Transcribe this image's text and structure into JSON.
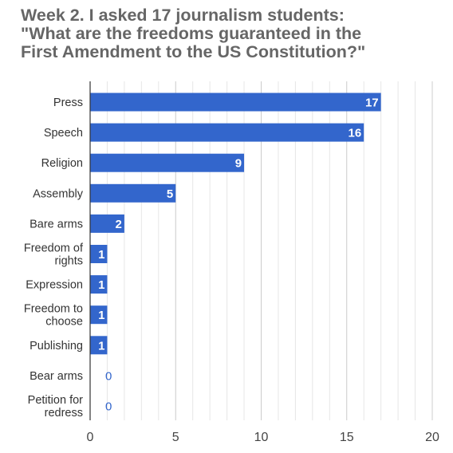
{
  "chart_data": {
    "type": "bar",
    "orientation": "horizontal",
    "title_lines": [
      "Week 2. I asked 17 journalism students:",
      "\"What are the freedoms guaranteed in the",
      "First Amendment to the US Constitution?\""
    ],
    "categories": [
      [
        "Press"
      ],
      [
        "Speech"
      ],
      [
        "Religion"
      ],
      [
        "Assembly"
      ],
      [
        "Bare arms"
      ],
      [
        "Freedom of",
        "rights"
      ],
      [
        "Expression"
      ],
      [
        "Freedom to",
        "choose"
      ],
      [
        "Publishing"
      ],
      [
        "Bear arms"
      ],
      [
        "Petition for",
        "redress"
      ]
    ],
    "values": [
      17,
      16,
      9,
      5,
      2,
      1,
      1,
      1,
      1,
      0,
      0
    ],
    "value_labels": [
      "17",
      "16",
      "9",
      "5",
      "2",
      "1",
      "1",
      "1",
      "1",
      "0",
      "0"
    ],
    "xlim": [
      0,
      20
    ],
    "x_ticks": [
      0,
      5,
      10,
      15,
      20
    ],
    "x_tick_labels": [
      "0",
      "5",
      "10",
      "15",
      "20"
    ],
    "minor_step": 1,
    "bar_color": "#3366cc",
    "grid": true,
    "legend": "none"
  }
}
